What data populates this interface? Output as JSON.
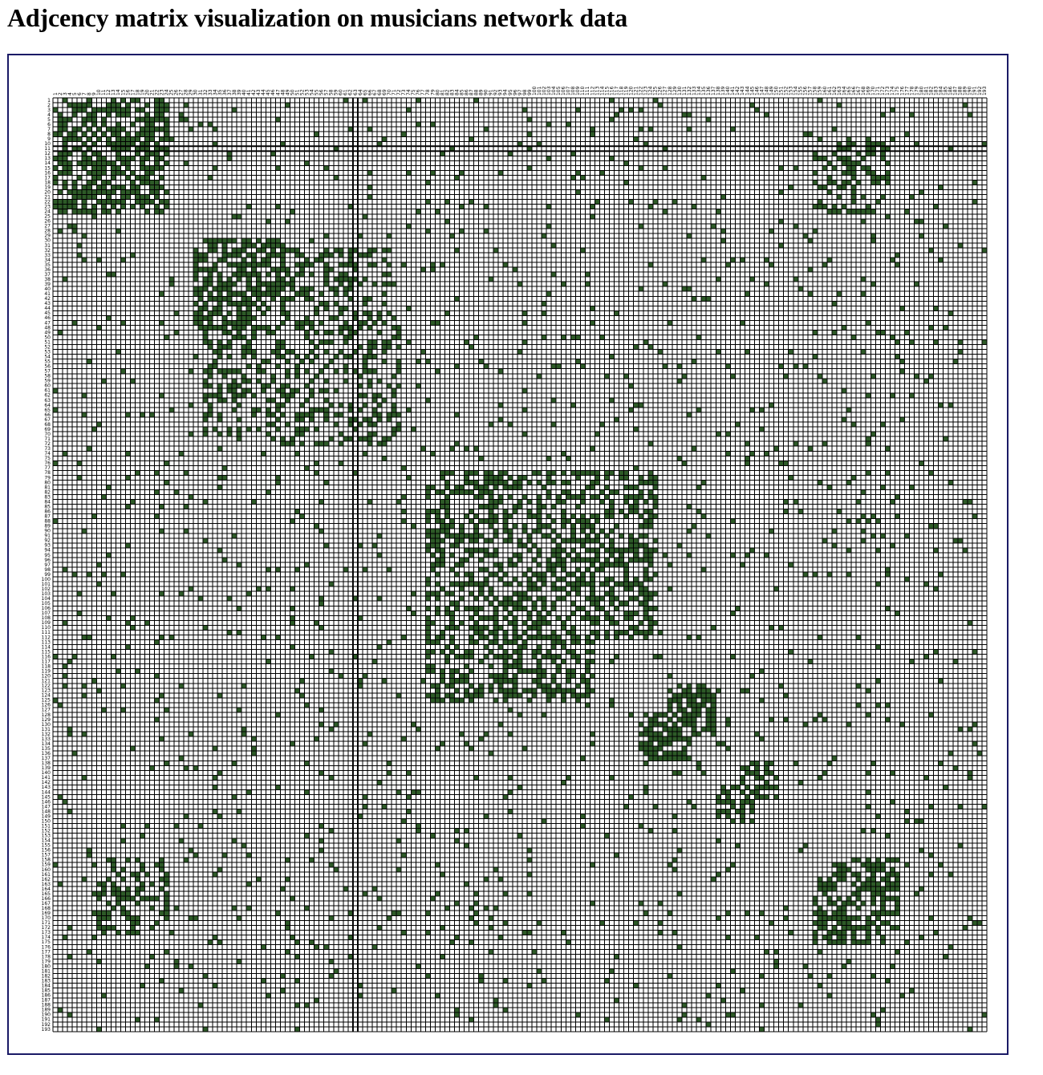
{
  "page": {
    "title": "Adjcency matrix visualization on musicians network data"
  },
  "chart_data": {
    "type": "heatmap",
    "title": "Adjcency matrix visualization on musicians network data",
    "node_count": 193,
    "row_labels_range": [
      1,
      193
    ],
    "col_labels_range": [
      1,
      193
    ],
    "cell_fill_color": "#2d5a27",
    "empty_cell_color": "#ffffff",
    "grid_line_color": "#000000",
    "highlight_line_color": "#000000",
    "highlighted_row": 11,
    "highlighted_col": 63,
    "dense_blocks": [
      {
        "rows": [
          1,
          24
        ],
        "cols": [
          1,
          24
        ],
        "density": 0.55
      },
      {
        "rows": [
          30,
          44
        ],
        "cols": [
          30,
          48
        ],
        "density": 0.6
      },
      {
        "rows": [
          45,
          70
        ],
        "cols": [
          32,
          72
        ],
        "density": 0.35
      },
      {
        "rows": [
          78,
          112
        ],
        "cols": [
          80,
          125
        ],
        "density": 0.45
      },
      {
        "rows": [
          122,
          132
        ],
        "cols": [
          128,
          137
        ],
        "density": 0.6
      },
      {
        "rows": [
          138,
          145
        ],
        "cols": [
          143,
          150
        ],
        "density": 0.55
      },
      {
        "rows": [
          158,
          172
        ],
        "cols": [
          162,
          175
        ],
        "density": 0.65
      },
      {
        "rows": [
          10,
          22
        ],
        "cols": [
          163,
          173
        ],
        "density": 0.5
      },
      {
        "rows": [
          158,
          172
        ],
        "cols": [
          12,
          24
        ],
        "density": 0.35
      }
    ],
    "background_density": 0.035,
    "legend": "none"
  }
}
